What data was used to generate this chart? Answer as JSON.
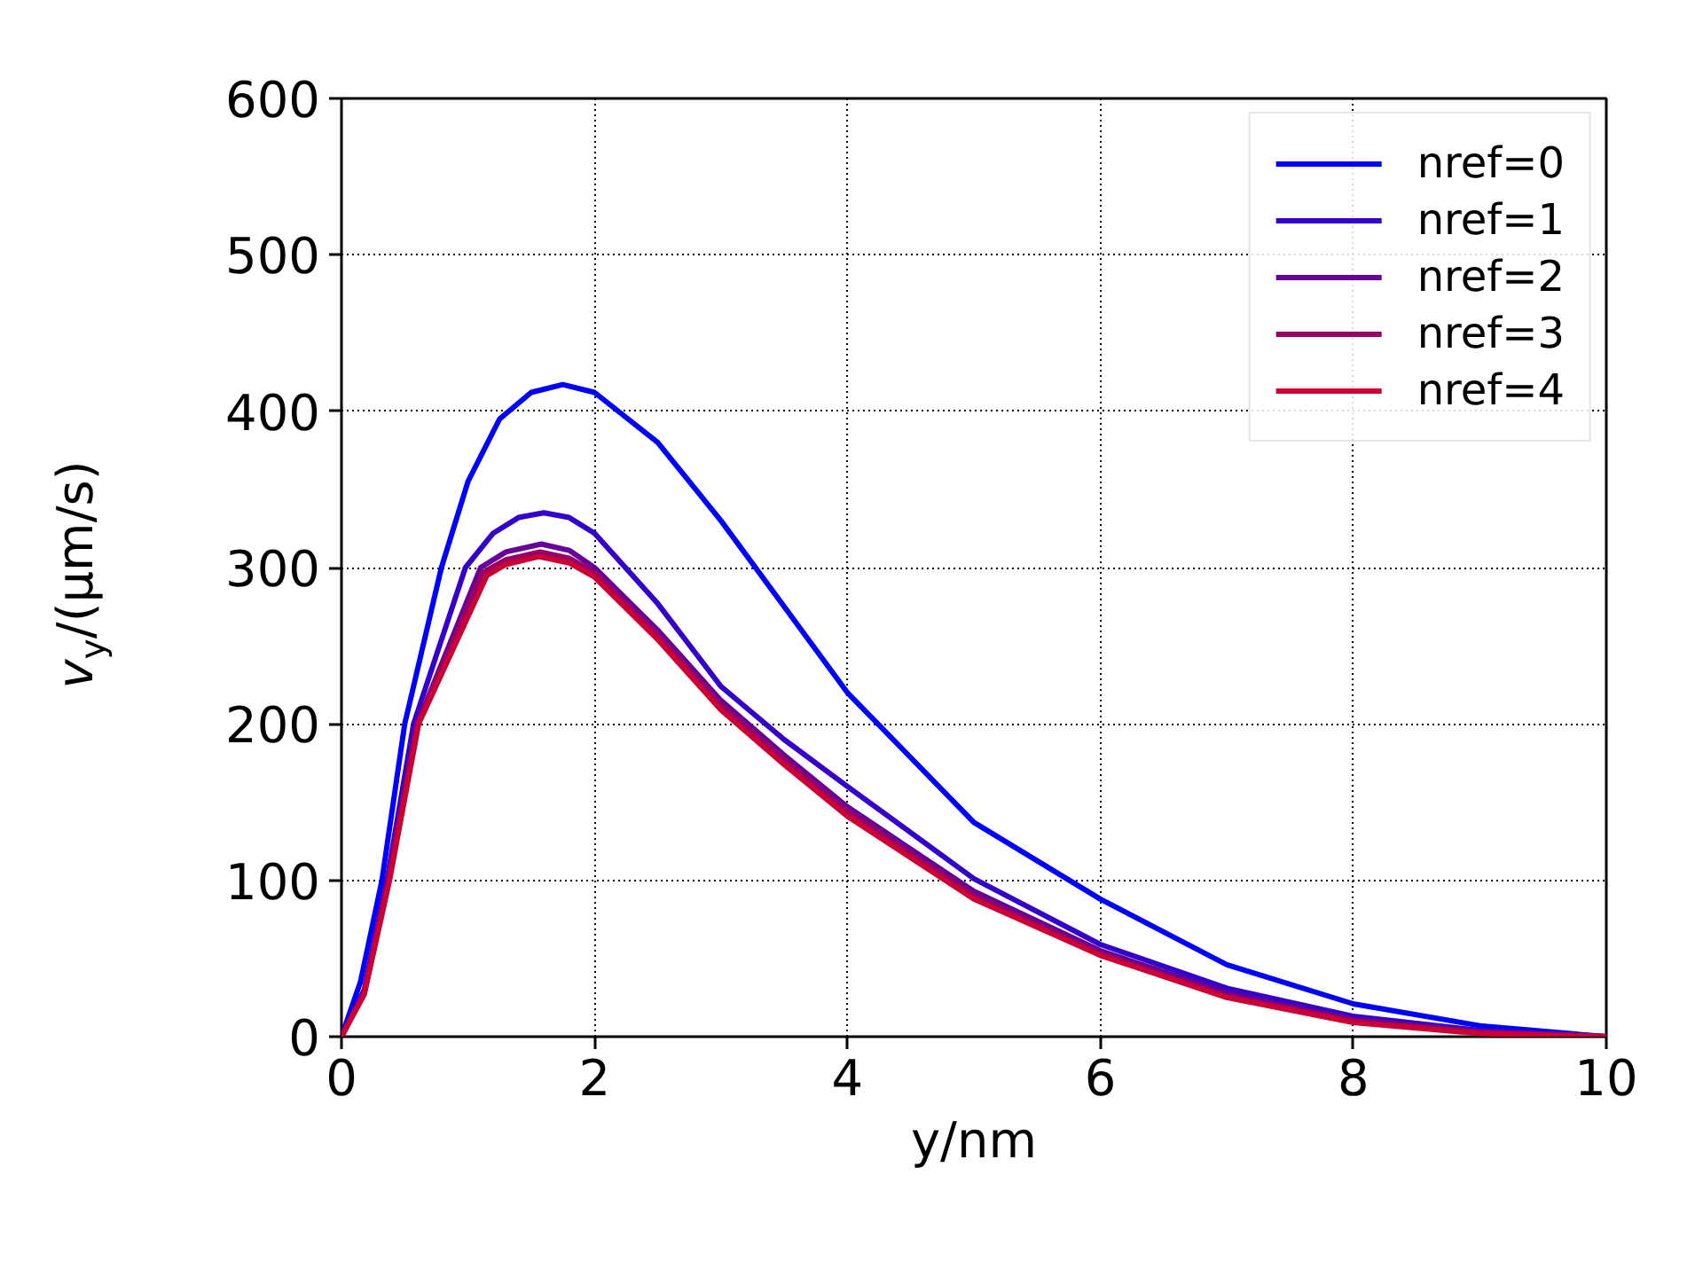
{
  "chart_data": {
    "type": "line",
    "xlabel": "y/nm",
    "ylabel": "v$_{y}$/(μm/s)",
    "xlim": [
      0,
      10
    ],
    "ylim": [
      0,
      600
    ],
    "xticks": [
      0,
      2,
      4,
      6,
      8,
      10
    ],
    "yticks": [
      0,
      100,
      200,
      300,
      400,
      500,
      600
    ],
    "grid": true,
    "legend": "top right",
    "line_style": "solid",
    "marker": "none",
    "series": [
      {
        "name": "nref=0",
        "color": "#0000ff",
        "x": [
          0,
          0.15,
          0.32,
          0.5,
          0.79,
          1.0,
          1.25,
          1.5,
          1.75,
          2.0,
          2.5,
          3,
          3.5,
          4,
          5,
          6,
          7,
          8,
          9,
          10
        ],
        "values": [
          0,
          35,
          100,
          200,
          300,
          355,
          395,
          412,
          417,
          412,
          380,
          330,
          275,
          220,
          137,
          88,
          46,
          21,
          7,
          0
        ]
      },
      {
        "name": "nref=1",
        "color": "#3300cc",
        "x": [
          0,
          0.18,
          0.36,
          0.57,
          0.98,
          1.2,
          1.4,
          1.6,
          1.8,
          2.0,
          2.5,
          3,
          3.5,
          4,
          5,
          6,
          7,
          8,
          9,
          10
        ],
        "values": [
          0,
          30,
          100,
          200,
          300,
          322,
          332,
          335,
          332,
          322,
          277,
          224,
          190,
          160,
          101,
          59,
          31,
          13,
          4,
          0
        ]
      },
      {
        "name": "nref=2",
        "color": "#660099",
        "x": [
          0,
          0.18,
          0.37,
          0.6,
          1.1,
          1.3,
          1.58,
          1.8,
          2.0,
          2.5,
          3,
          3.5,
          4,
          5,
          6,
          7,
          8,
          9,
          10
        ],
        "values": [
          0,
          28,
          100,
          200,
          300,
          310,
          315,
          311,
          300,
          260,
          215,
          180,
          147,
          93,
          55,
          28,
          11,
          3,
          0
        ]
      },
      {
        "name": "nref=3",
        "color": "#990066",
        "x": [
          0,
          0.18,
          0.37,
          0.6,
          1.12,
          1.3,
          1.57,
          1.8,
          2.0,
          2.5,
          3,
          3.5,
          4,
          5,
          6,
          7,
          8,
          9,
          10
        ],
        "values": [
          0,
          28,
          100,
          200,
          297,
          305,
          310,
          306,
          297,
          257,
          212,
          177,
          144,
          90,
          53,
          26,
          10,
          3,
          0
        ]
      },
      {
        "name": "nref=4",
        "color": "#cc0033",
        "x": [
          0,
          0.18,
          0.38,
          0.61,
          1.15,
          1.3,
          1.56,
          1.8,
          2.0,
          2.5,
          3,
          3.5,
          4,
          5,
          6,
          7,
          8,
          9,
          10
        ],
        "values": [
          0,
          27,
          100,
          200,
          295,
          302,
          307,
          303,
          294,
          254,
          209,
          174,
          141,
          88,
          52,
          25,
          9,
          2,
          0
        ]
      }
    ]
  }
}
